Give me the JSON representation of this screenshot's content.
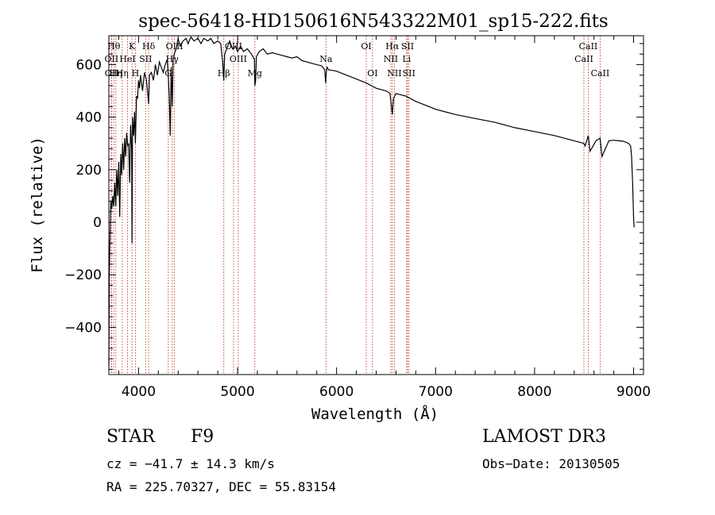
{
  "chart_data": {
    "type": "line",
    "title": "spec-56418-HD150616N543322M01_sp15-222.fits",
    "xlabel": "Wavelength (Å)",
    "ylabel": "Flux (relative)",
    "xlim": [
      3700,
      9100
    ],
    "ylim": [
      -580,
      710
    ],
    "xticks": [
      4000,
      5000,
      6000,
      7000,
      8000,
      9000
    ],
    "yticks": [
      -400,
      -200,
      0,
      200,
      400,
      600
    ],
    "line_color": "#000000",
    "marker_color": "#c0392b",
    "series": [
      {
        "name": "flux",
        "x": [
          3700,
          3705,
          3710,
          3715,
          3720,
          3730,
          3740,
          3750,
          3760,
          3770,
          3780,
          3790,
          3800,
          3810,
          3820,
          3830,
          3840,
          3850,
          3860,
          3870,
          3880,
          3890,
          3900,
          3910,
          3920,
          3930,
          3934,
          3940,
          3950,
          3960,
          3968,
          3980,
          3990,
          4000,
          4010,
          4020,
          4040,
          4060,
          4080,
          4102,
          4110,
          4130,
          4150,
          4170,
          4190,
          4210,
          4230,
          4250,
          4270,
          4290,
          4300,
          4310,
          4320,
          4330,
          4340,
          4350,
          4360,
          4380,
          4400,
          4420,
          4450,
          4480,
          4500,
          4530,
          4560,
          4600,
          4630,
          4660,
          4700,
          4730,
          4760,
          4800,
          4830,
          4850,
          4861,
          4870,
          4900,
          4920,
          4950,
          4980,
          5000,
          5030,
          5060,
          5100,
          5140,
          5170,
          5175,
          5183,
          5190,
          5220,
          5260,
          5300,
          5350,
          5400,
          5450,
          5500,
          5550,
          5600,
          5650,
          5700,
          5750,
          5800,
          5850,
          5880,
          5890,
          5896,
          5905,
          5920,
          6000,
          6100,
          6200,
          6300,
          6400,
          6500,
          6540,
          6563,
          6575,
          6600,
          6700,
          6800,
          6900,
          7000,
          7100,
          7200,
          7400,
          7600,
          7800,
          8000,
          8200,
          8400,
          8498,
          8510,
          8542,
          8560,
          8620,
          8662,
          8680,
          8750,
          8800,
          8850,
          8900,
          8950,
          8970,
          8980,
          8990,
          9000,
          9005
        ],
        "y": [
          -550,
          -200,
          -100,
          0,
          80,
          50,
          100,
          60,
          150,
          60,
          200,
          100,
          230,
          20,
          260,
          180,
          300,
          200,
          320,
          250,
          340,
          290,
          300,
          150,
          370,
          280,
          -80,
          400,
          330,
          420,
          300,
          480,
          470,
          540,
          510,
          560,
          500,
          570,
          540,
          450,
          560,
          570,
          540,
          600,
          560,
          610,
          590,
          570,
          600,
          620,
          560,
          480,
          330,
          590,
          440,
          620,
          640,
          660,
          700,
          670,
          690,
          700,
          680,
          705,
          690,
          700,
          680,
          700,
          690,
          700,
          680,
          690,
          680,
          610,
          540,
          640,
          670,
          690,
          660,
          670,
          650,
          670,
          650,
          660,
          640,
          620,
          520,
          540,
          630,
          650,
          660,
          640,
          645,
          640,
          635,
          630,
          625,
          630,
          615,
          610,
          605,
          600,
          595,
          580,
          530,
          570,
          590,
          580,
          575,
          560,
          545,
          530,
          510,
          500,
          490,
          410,
          470,
          490,
          480,
          460,
          445,
          430,
          420,
          410,
          395,
          380,
          360,
          345,
          330,
          310,
          300,
          290,
          330,
          270,
          310,
          320,
          250,
          310,
          312,
          310,
          308,
          300,
          290,
          250,
          150,
          20,
          -20
        ]
      }
    ],
    "line_markers": [
      {
        "wl": 3750,
        "label": "Hθ",
        "level": 1
      },
      {
        "wl": 3727,
        "label": "OII",
        "level": 2
      },
      {
        "wl": 3729,
        "label": "OII",
        "level": 3
      },
      {
        "wl": 3770,
        "label": "Hη",
        "level": 3
      },
      {
        "wl": 3835,
        "label": "Hη",
        "level": 3
      },
      {
        "wl": 3889,
        "label": "HeI",
        "level": 2
      },
      {
        "wl": 3934,
        "label": "K",
        "level": 1
      },
      {
        "wl": 3968,
        "label": "H",
        "level": 3
      },
      {
        "wl": 4072,
        "label": "SII",
        "level": 2
      },
      {
        "wl": 4102,
        "label": "Hδ",
        "level": 1
      },
      {
        "wl": 4300,
        "label": "G",
        "level": 3
      },
      {
        "wl": 4340,
        "label": "Hγ",
        "level": 2
      },
      {
        "wl": 4363,
        "label": "OIII",
        "level": 1
      },
      {
        "wl": 4861,
        "label": "Hβ",
        "level": 3
      },
      {
        "wl": 4959,
        "label": "OIII",
        "level": 1
      },
      {
        "wl": 5007,
        "label": "OIII",
        "level": 2
      },
      {
        "wl": 5175,
        "label": "Mg",
        "level": 3
      },
      {
        "wl": 5893,
        "label": "Na",
        "level": 2
      },
      {
        "wl": 6300,
        "label": "OI",
        "level": 1
      },
      {
        "wl": 6363,
        "label": "OI",
        "level": 3
      },
      {
        "wl": 6548,
        "label": "NII",
        "level": 2
      },
      {
        "wl": 6563,
        "label": "Hα",
        "level": 1
      },
      {
        "wl": 6584,
        "label": "NII",
        "level": 3
      },
      {
        "wl": 6708,
        "label": "Li",
        "level": 2
      },
      {
        "wl": 6717,
        "label": "SII",
        "level": 1
      },
      {
        "wl": 6731,
        "label": "SII",
        "level": 3
      },
      {
        "wl": 8498,
        "label": "CaII",
        "level": 2
      },
      {
        "wl": 8542,
        "label": "CaII",
        "level": 1
      },
      {
        "wl": 8662,
        "label": "CaII",
        "level": 3
      }
    ]
  },
  "info": {
    "class": "STAR",
    "subclass": "F9",
    "survey": "LAMOST DR3",
    "cz": "cz = −41.7 ± 14.3 km/s",
    "obs_date": "Obs−Date: 20130505",
    "radec": "RA = 225.70327, DEC =  55.83154"
  }
}
